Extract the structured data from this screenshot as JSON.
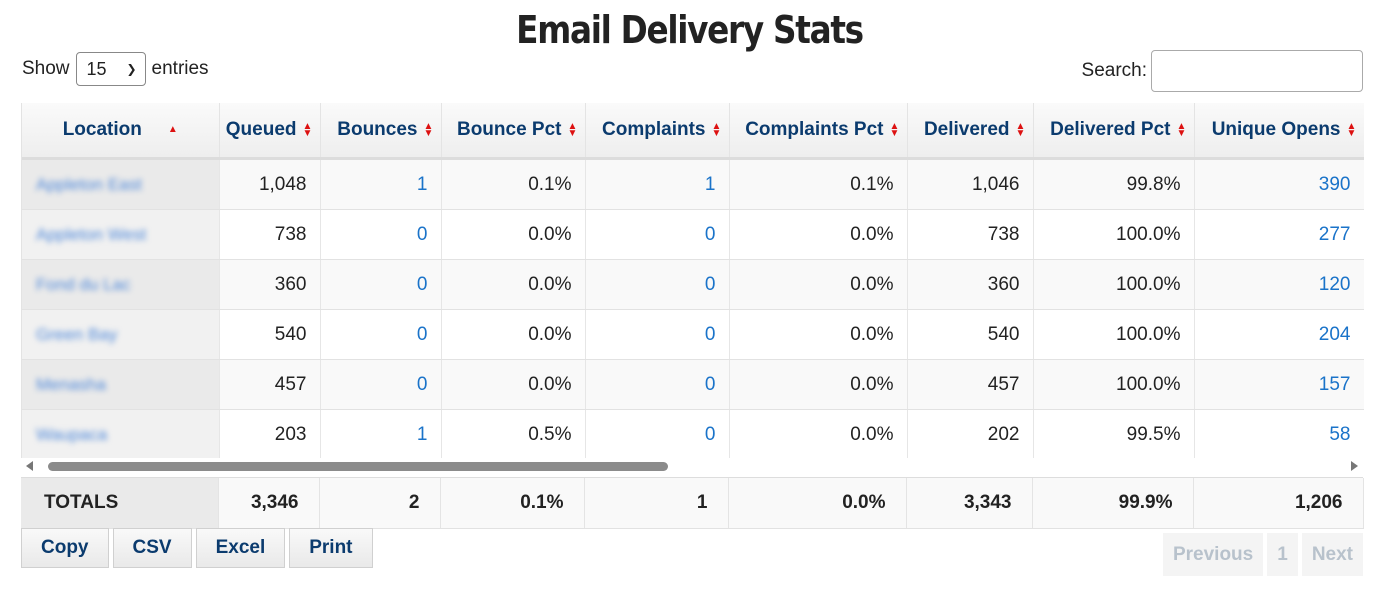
{
  "title": "Email Delivery Stats",
  "length_control": {
    "show_label": "Show",
    "selected": "15",
    "entries_label": "entries"
  },
  "search": {
    "label": "Search:",
    "value": ""
  },
  "columns": [
    "Location",
    "Queued",
    "Bounces",
    "Bounce Pct",
    "Complaints",
    "Complaints Pct",
    "Delivered",
    "Delivered Pct",
    "Unique Opens"
  ],
  "rows": [
    {
      "location": "Appleton East",
      "queued": "1,048",
      "bounces": "1",
      "bounce_pct": "0.1%",
      "complaints": "1",
      "complaints_pct": "0.1%",
      "delivered": "1,046",
      "delivered_pct": "99.8%",
      "unique_opens": "390"
    },
    {
      "location": "Appleton West",
      "queued": "738",
      "bounces": "0",
      "bounce_pct": "0.0%",
      "complaints": "0",
      "complaints_pct": "0.0%",
      "delivered": "738",
      "delivered_pct": "100.0%",
      "unique_opens": "277"
    },
    {
      "location": "Fond du Lac",
      "queued": "360",
      "bounces": "0",
      "bounce_pct": "0.0%",
      "complaints": "0",
      "complaints_pct": "0.0%",
      "delivered": "360",
      "delivered_pct": "100.0%",
      "unique_opens": "120"
    },
    {
      "location": "Green Bay",
      "queued": "540",
      "bounces": "0",
      "bounce_pct": "0.0%",
      "complaints": "0",
      "complaints_pct": "0.0%",
      "delivered": "540",
      "delivered_pct": "100.0%",
      "unique_opens": "204"
    },
    {
      "location": "Menasha",
      "queued": "457",
      "bounces": "0",
      "bounce_pct": "0.0%",
      "complaints": "0",
      "complaints_pct": "0.0%",
      "delivered": "457",
      "delivered_pct": "100.0%",
      "unique_opens": "157"
    },
    {
      "location": "Waupaca",
      "queued": "203",
      "bounces": "1",
      "bounce_pct": "0.5%",
      "complaints": "0",
      "complaints_pct": "0.0%",
      "delivered": "202",
      "delivered_pct": "99.5%",
      "unique_opens": "58"
    }
  ],
  "totals": {
    "label": "TOTALS",
    "queued": "3,346",
    "bounces": "2",
    "bounce_pct": "0.1%",
    "complaints": "1",
    "complaints_pct": "0.0%",
    "delivered": "3,343",
    "delivered_pct": "99.9%",
    "unique_opens": "1,206"
  },
  "export_buttons": [
    "Copy",
    "CSV",
    "Excel",
    "Print"
  ],
  "pagination": {
    "previous": "Previous",
    "page": "1",
    "next": "Next"
  },
  "colors": {
    "header_text": "#0b3b6e",
    "link": "#1a73c9",
    "sort_arrow": "#dd1111"
  },
  "icons": {
    "sort": "sort-both-icon",
    "sort_asc": "sort-asc-icon"
  }
}
